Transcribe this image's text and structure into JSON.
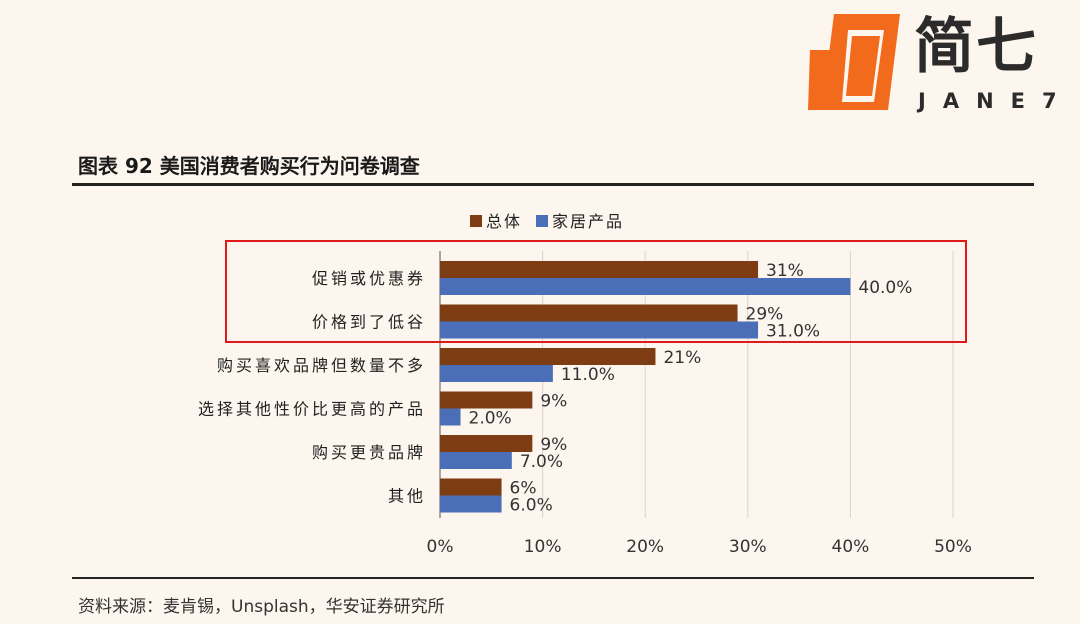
{
  "logo": {
    "cn": "简七",
    "en": "JANE7"
  },
  "figure_title": "图表 92  美国消费者购买行为问卷调查",
  "source": "资料来源：麦肯锡，Unsplash，华安证券研究所",
  "colors": {
    "series1": "#7e3c12",
    "series2": "#4a6fb8",
    "highlight": "#e01a1a",
    "logo_orange": "#f26a1b"
  },
  "chart_data": {
    "type": "bar",
    "orientation": "horizontal",
    "categories": [
      "促销或优惠券",
      "价格到了低谷",
      "购买喜欢品牌但数量不多",
      "选择其他性价比更高的产品",
      "购买更贵品牌",
      "其他"
    ],
    "series": [
      {
        "name": "总体",
        "values": [
          31,
          29,
          21,
          9,
          9,
          6
        ],
        "labels": [
          "31%",
          "29%",
          "21%",
          "9%",
          "9%",
          "6%"
        ]
      },
      {
        "name": "家居产品",
        "values": [
          40.0,
          31.0,
          11.0,
          2.0,
          7.0,
          6.0
        ],
        "labels": [
          "40.0%",
          "31.0%",
          "11.0%",
          "2.0%",
          "7.0%",
          "6.0%"
        ]
      }
    ],
    "xlim": [
      0,
      50
    ],
    "xticks": [
      "0%",
      "10%",
      "20%",
      "30%",
      "40%",
      "50%"
    ],
    "grid": "vertical",
    "legend": "top-center",
    "highlight_categories": [
      "促销或优惠券",
      "价格到了低谷"
    ]
  }
}
